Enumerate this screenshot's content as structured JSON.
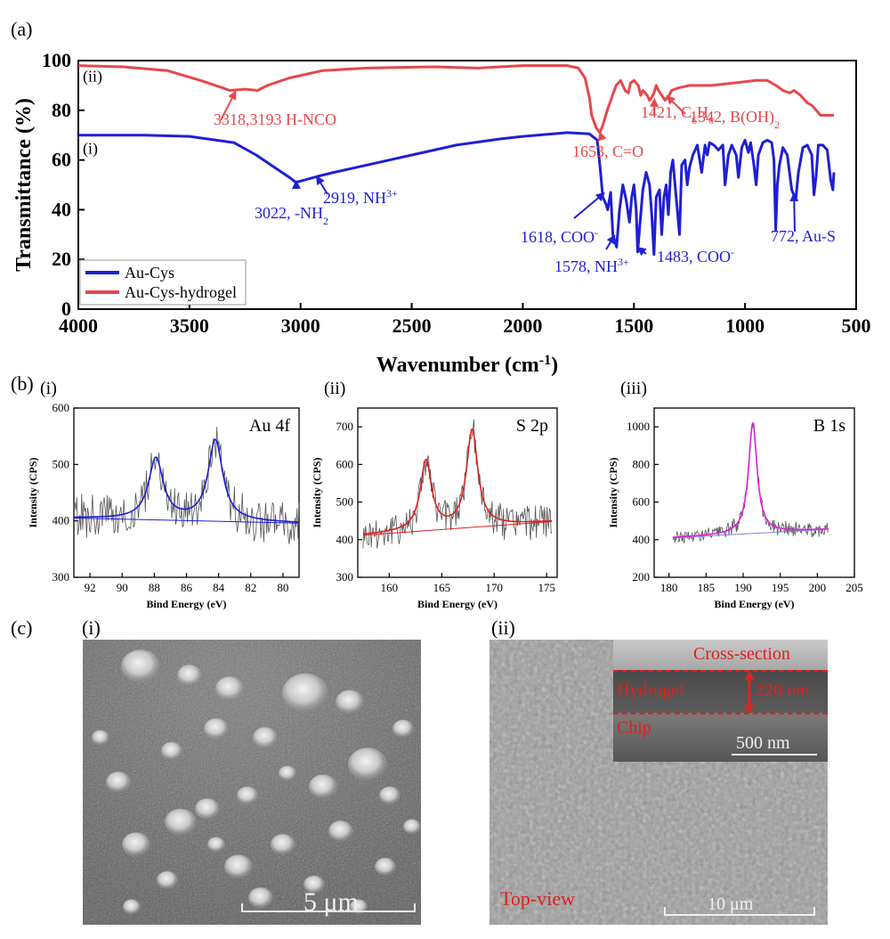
{
  "panel_labels": {
    "a": "(a)",
    "b": "(b)",
    "c": "(c)"
  },
  "chart_data": [
    {
      "type": "line",
      "panel": "(a)",
      "xlabel": "Wavenumber (cm",
      "xlabel_sup": "-1",
      "xlabel_tail": ")",
      "ylabel": "Transmittance (%)",
      "xlim": [
        4000,
        500
      ],
      "ylim": [
        0,
        100
      ],
      "x_ticks": [
        4000,
        3500,
        3000,
        2500,
        2000,
        1500,
        1000,
        500
      ],
      "y_ticks": [
        0,
        20,
        40,
        60,
        80,
        100
      ],
      "grid": false,
      "legend_placement": "bottom-left",
      "series": [
        {
          "name": "Au-Cys",
          "color": "#1f1fd6",
          "curve_label": "(i)",
          "points": [
            [
              4000,
              70
            ],
            [
              3700,
              70
            ],
            [
              3500,
              69.5
            ],
            [
              3300,
              67
            ],
            [
              3200,
              62
            ],
            [
              3100,
              56
            ],
            [
              3050,
              53
            ],
            [
              3022,
              51
            ],
            [
              2980,
              52
            ],
            [
              2919,
              53.5
            ],
            [
              2850,
              55
            ],
            [
              2700,
              58
            ],
            [
              2500,
              62
            ],
            [
              2300,
              66
            ],
            [
              2100,
              68.5
            ],
            [
              2000,
              69.5
            ],
            [
              1800,
              71
            ],
            [
              1700,
              70.5
            ],
            [
              1665,
              68
            ],
            [
              1650,
              55
            ],
            [
              1640,
              45
            ],
            [
              1625,
              42
            ],
            [
              1618,
              40
            ],
            [
              1605,
              47
            ],
            [
              1595,
              30
            ],
            [
              1578,
              25
            ],
            [
              1565,
              40
            ],
            [
              1550,
              50
            ],
            [
              1535,
              44
            ],
            [
              1520,
              35
            ],
            [
              1510,
              45
            ],
            [
              1500,
              50
            ],
            [
              1490,
              40
            ],
            [
              1483,
              23
            ],
            [
              1475,
              32
            ],
            [
              1460,
              48
            ],
            [
              1445,
              55
            ],
            [
              1430,
              50
            ],
            [
              1420,
              38
            ],
            [
              1410,
              22
            ],
            [
              1400,
              45
            ],
            [
              1385,
              48
            ],
            [
              1375,
              30
            ],
            [
              1365,
              45
            ],
            [
              1355,
              50
            ],
            [
              1345,
              38
            ],
            [
              1335,
              55
            ],
            [
              1325,
              60
            ],
            [
              1310,
              45
            ],
            [
              1295,
              30
            ],
            [
              1285,
              58
            ],
            [
              1270,
              60
            ],
            [
              1260,
              50
            ],
            [
              1250,
              57
            ],
            [
              1235,
              62
            ],
            [
              1215,
              66
            ],
            [
              1195,
              55
            ],
            [
              1180,
              66
            ],
            [
              1170,
              62
            ],
            [
              1160,
              67
            ],
            [
              1140,
              66
            ],
            [
              1120,
              64
            ],
            [
              1100,
              66
            ],
            [
              1090,
              50
            ],
            [
              1075,
              62
            ],
            [
              1060,
              66
            ],
            [
              1040,
              62
            ],
            [
              1030,
              53
            ],
            [
              1015,
              65
            ],
            [
              1000,
              68
            ],
            [
              985,
              63
            ],
            [
              975,
              67
            ],
            [
              960,
              58
            ],
            [
              950,
              50
            ],
            [
              940,
              62
            ],
            [
              920,
              67
            ],
            [
              900,
              68
            ],
            [
              880,
              67
            ],
            [
              870,
              60
            ],
            [
              862,
              32
            ],
            [
              855,
              50
            ],
            [
              845,
              58
            ],
            [
              830,
              65
            ],
            [
              810,
              62
            ],
            [
              790,
              48
            ],
            [
              772,
              44
            ],
            [
              760,
              55
            ],
            [
              740,
              65
            ],
            [
              720,
              66
            ],
            [
              700,
              62
            ],
            [
              690,
              46
            ],
            [
              680,
              54
            ],
            [
              670,
              66
            ],
            [
              650,
              66
            ],
            [
              630,
              64
            ],
            [
              615,
              52
            ],
            [
              605,
              48
            ],
            [
              600,
              55
            ]
          ]
        },
        {
          "name": "Au-Cys-hydrogel",
          "color": "#e8474a",
          "curve_label": "(ii)",
          "points": [
            [
              4000,
              98
            ],
            [
              3800,
              97.5
            ],
            [
              3600,
              96
            ],
            [
              3450,
              92
            ],
            [
              3350,
              89
            ],
            [
              3318,
              88
            ],
            [
              3250,
              88.5
            ],
            [
              3193,
              88
            ],
            [
              3150,
              90
            ],
            [
              3050,
              93
            ],
            [
              2900,
              96
            ],
            [
              2700,
              97
            ],
            [
              2400,
              97.5
            ],
            [
              2200,
              97
            ],
            [
              2000,
              98
            ],
            [
              1800,
              98
            ],
            [
              1750,
              97
            ],
            [
              1720,
              93
            ],
            [
              1700,
              85
            ],
            [
              1690,
              78
            ],
            [
              1670,
              73
            ],
            [
              1653,
              71
            ],
            [
              1640,
              74
            ],
            [
              1620,
              80
            ],
            [
              1600,
              85
            ],
            [
              1580,
              90
            ],
            [
              1560,
              92
            ],
            [
              1540,
              88
            ],
            [
              1525,
              87
            ],
            [
              1515,
              91
            ],
            [
              1500,
              92
            ],
            [
              1480,
              90
            ],
            [
              1470,
              86
            ],
            [
              1460,
              88
            ],
            [
              1440,
              86
            ],
            [
              1430,
              84
            ],
            [
              1421,
              85
            ],
            [
              1410,
              87
            ],
            [
              1400,
              90
            ],
            [
              1390,
              88
            ],
            [
              1375,
              86
            ],
            [
              1360,
              84
            ],
            [
              1342,
              86
            ],
            [
              1330,
              88
            ],
            [
              1300,
              89
            ],
            [
              1250,
              90
            ],
            [
              1150,
              90
            ],
            [
              1050,
              91
            ],
            [
              950,
              92
            ],
            [
              900,
              92
            ],
            [
              860,
              90
            ],
            [
              830,
              88
            ],
            [
              800,
              87
            ],
            [
              780,
              88
            ],
            [
              750,
              86
            ],
            [
              720,
              83
            ],
            [
              700,
              82
            ],
            [
              680,
              80
            ],
            [
              660,
              78
            ],
            [
              630,
              78
            ],
            [
              600,
              78
            ]
          ]
        }
      ],
      "annotations": [
        {
          "text": "3318,3193 H-NCO",
          "color": "#e8474a"
        },
        {
          "text": "1653, C=O",
          "color": "#e8474a"
        },
        {
          "text": "1421, C",
          "sub1": "6",
          "mid": "H",
          "sub2": "6",
          "color": "#e8474a"
        },
        {
          "text": "1342, B(OH)",
          "sub": "2",
          "color": "#e8474a"
        },
        {
          "text": "3022, -NH",
          "sub": "2",
          "color": "#1f1fd6"
        },
        {
          "text": "2919, NH",
          "sup": "3",
          "plus": "+",
          "color": "#1f1fd6"
        },
        {
          "text": "1618, COO",
          "sup": "-",
          "color": "#1f1fd6"
        },
        {
          "text": "1578,  NH",
          "sup": "3",
          "plus": "+",
          "color": "#1f1fd6"
        },
        {
          "text": "1483, COO",
          "sup": "-",
          "color": "#1f1fd6"
        },
        {
          "text": "772, Au-S",
          "color": "#1f1fd6"
        }
      ]
    },
    {
      "type": "line",
      "panel": "(b)(i)",
      "title": "Au 4f",
      "sub_label": "(i)",
      "xlabel": "Bind Energy (eV)",
      "ylabel": "Intensity (CPS)",
      "xlim": [
        93,
        79
      ],
      "ylim": [
        300,
        600
      ],
      "x_ticks": [
        92,
        90,
        88,
        86,
        84,
        82,
        80
      ],
      "y_ticks": [
        300,
        400,
        500,
        600
      ],
      "raw_color": "#555555",
      "fit_color": "#1f1fd6",
      "baseline_color": "#1f1fd6",
      "peaks": [
        {
          "center": 87.9,
          "height": 510
        },
        {
          "center": 84.2,
          "height": 542
        }
      ],
      "baseline": [
        [
          93,
          405
        ],
        [
          79,
          396
        ]
      ]
    },
    {
      "type": "line",
      "panel": "(b)(ii)",
      "title": "S 2p",
      "sub_label": "(ii)",
      "xlabel": "Bind Energy (eV)",
      "ylabel": "Intensity (CPS)",
      "xlim": [
        157,
        176
      ],
      "ylim": [
        300,
        750
      ],
      "x_ticks": [
        160,
        165,
        170,
        175
      ],
      "y_ticks": [
        300,
        400,
        500,
        600,
        700
      ],
      "raw_color": "#555555",
      "fit_color": "#e02020",
      "baseline_color": "#e02020",
      "peaks": [
        {
          "center": 163.5,
          "height": 608
        },
        {
          "center": 167.9,
          "height": 690
        }
      ],
      "baseline": [
        [
          157.5,
          412
        ],
        [
          175.5,
          448
        ]
      ]
    },
    {
      "type": "line",
      "panel": "(b)(iii)",
      "title": "B 1s",
      "sub_label": "(iii)",
      "xlabel": "Bind Energy (eV)",
      "ylabel": "Intensity (CPS)",
      "xlim": [
        178,
        205
      ],
      "ylim": [
        200,
        1100
      ],
      "x_ticks": [
        180,
        185,
        190,
        195,
        200,
        205
      ],
      "y_ticks": [
        200,
        400,
        600,
        800,
        1000
      ],
      "raw_color": "#555555",
      "fit_color": "#e020e0",
      "baseline_color": "#8080e0",
      "peaks": [
        {
          "center": 191.3,
          "height": 1020
        }
      ],
      "baseline": [
        [
          180.5,
          410
        ],
        [
          201.5,
          455
        ]
      ]
    }
  ],
  "micrographs": {
    "i": {
      "sub_label": "(i)",
      "scale_bar": "5 μm"
    },
    "ii": {
      "sub_label": "(ii)",
      "inset_title": "Cross-section",
      "layer_hydrogel": "Hydrogel",
      "thickness": "220 nm",
      "layer_chip": "Chip",
      "inset_scale_bar": "500 nm",
      "view_label": "Top-view",
      "scale_bar": "10 μm"
    }
  }
}
